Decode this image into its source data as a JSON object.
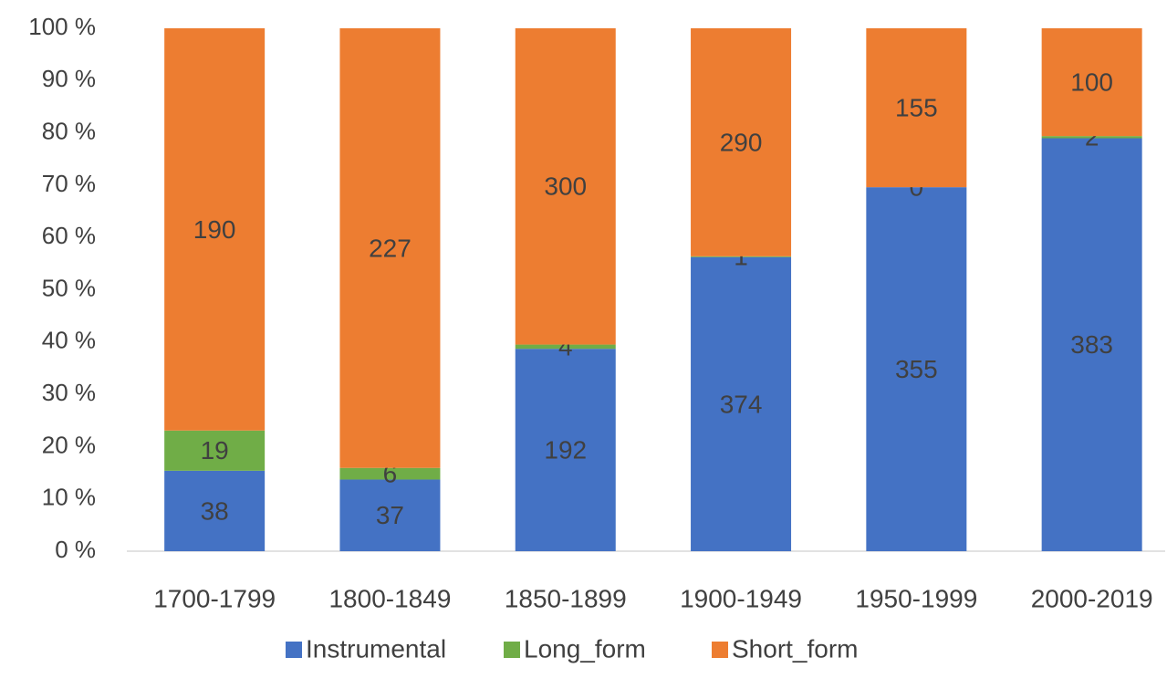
{
  "chart_data": {
    "type": "stacked_percent_bar",
    "categories": [
      "1700-1799",
      "1800-1849",
      "1850-1899",
      "1900-1949",
      "1950-1999",
      "2000-2019"
    ],
    "series": [
      {
        "name": "Instrumental",
        "color": "#4472c4",
        "values": [
          38,
          37,
          192,
          374,
          355,
          383
        ]
      },
      {
        "name": "Long_form",
        "color": "#70ad47",
        "values": [
          19,
          6,
          4,
          1,
          0,
          2
        ]
      },
      {
        "name": "Short_form",
        "color": "#ed7d31",
        "values": [
          190,
          227,
          300,
          290,
          155,
          100
        ]
      }
    ],
    "ylim": [
      0,
      100
    ],
    "yticks": [
      {
        "value": 0,
        "label": "0 %"
      },
      {
        "value": 10,
        "label": "10 %"
      },
      {
        "value": 20,
        "label": "20 %"
      },
      {
        "value": 30,
        "label": "30 %"
      },
      {
        "value": 40,
        "label": "40 %"
      },
      {
        "value": 50,
        "label": "50 %"
      },
      {
        "value": 60,
        "label": "60 %"
      },
      {
        "value": 70,
        "label": "70 %"
      },
      {
        "value": 80,
        "label": "80 %"
      },
      {
        "value": 90,
        "label": "90 %"
      },
      {
        "value": 100,
        "label": "100 %"
      }
    ],
    "grid": false,
    "legend": "bottom"
  }
}
